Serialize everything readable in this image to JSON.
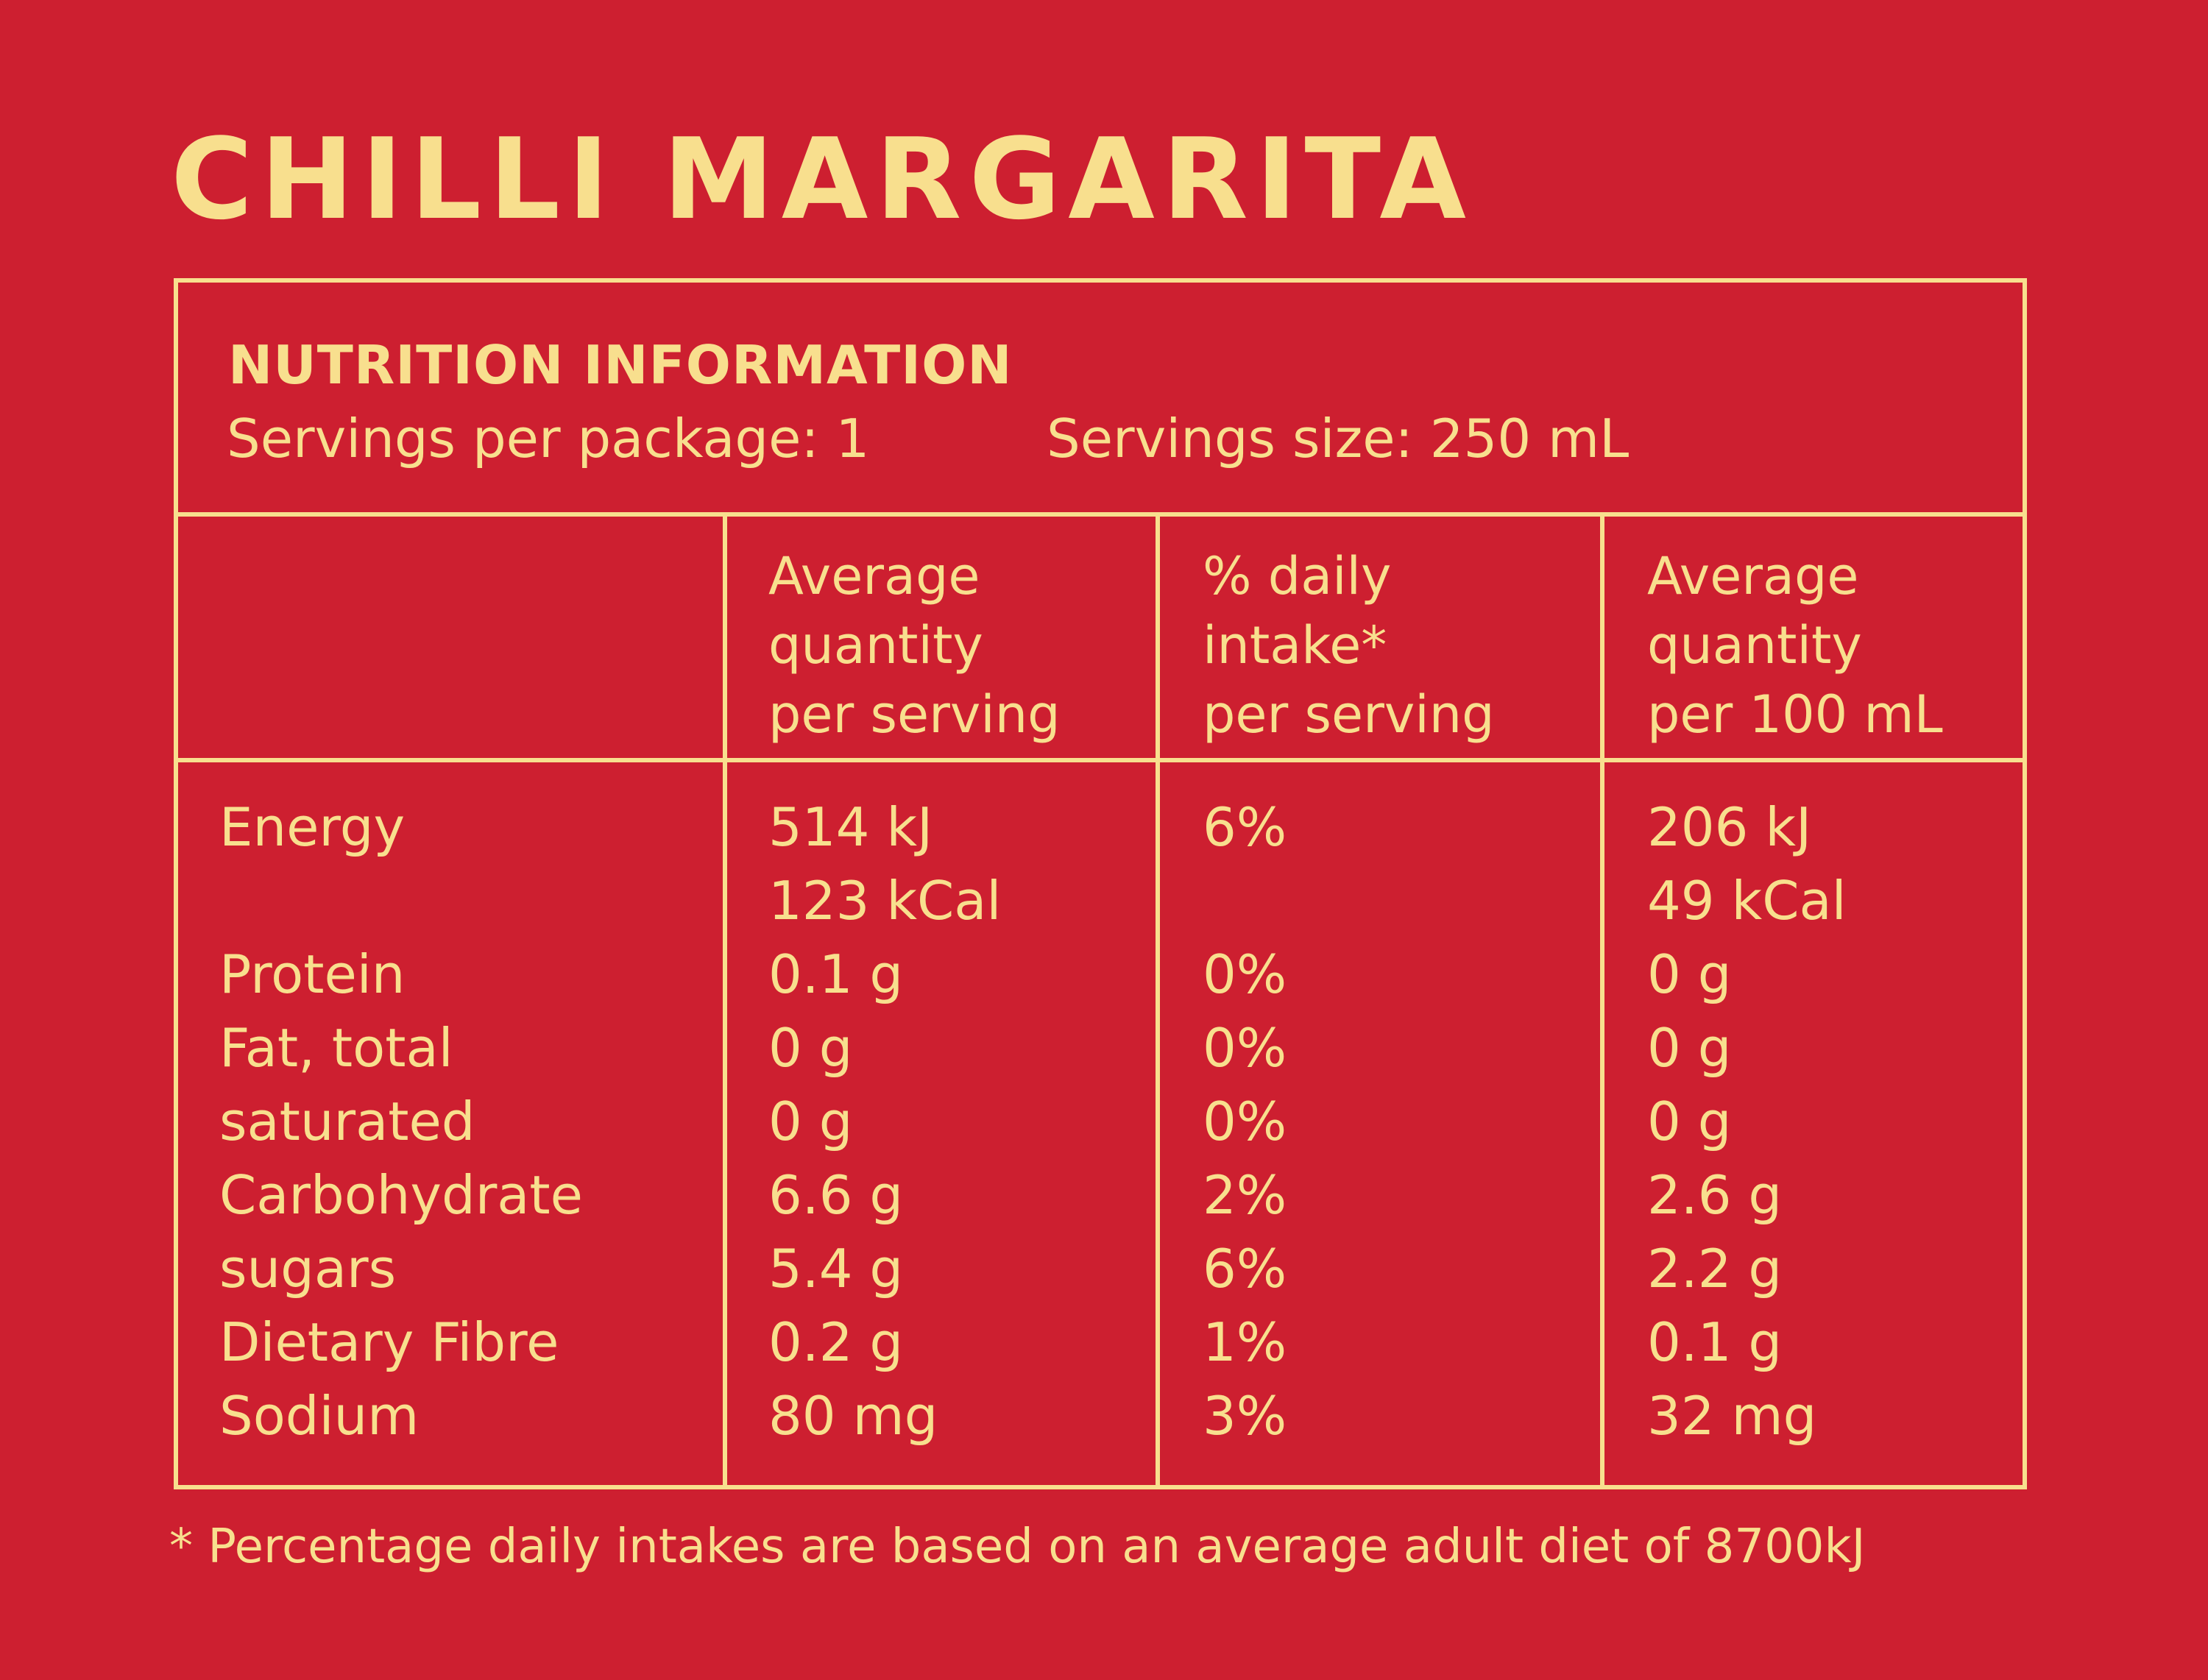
{
  "title": "CHILLI MARGARITA",
  "header": {
    "title": "NUTRITION INFORMATION",
    "servings_per_package": "Servings per package: 1",
    "servings_size": "Servings size: 250 mL"
  },
  "columns": [
    {
      "lines": [
        "Average",
        "quantity",
        "per serving"
      ]
    },
    {
      "lines": [
        "% daily",
        "intake*",
        "per serving"
      ]
    },
    {
      "lines": [
        "Average",
        "quantity",
        "per 100 mL"
      ]
    }
  ],
  "rows": [
    {
      "nutrient": "Energy",
      "per_serving": "514 kJ",
      "daily_intake": "6%",
      "per_100ml": "206 kJ"
    },
    {
      "nutrient": "",
      "per_serving": "123 kCal",
      "daily_intake": "",
      "per_100ml": "49 kCal"
    },
    {
      "nutrient": "Protein",
      "per_serving": "0.1 g",
      "daily_intake": "0%",
      "per_100ml": "0 g"
    },
    {
      "nutrient": "Fat, total",
      "per_serving": "0 g",
      "daily_intake": "0%",
      "per_100ml": "0 g"
    },
    {
      "nutrient": "saturated",
      "per_serving": "0 g",
      "daily_intake": "0%",
      "per_100ml": "0 g"
    },
    {
      "nutrient": "Carbohydrate",
      "per_serving": "6.6 g",
      "daily_intake": "2%",
      "per_100ml": "2.6 g"
    },
    {
      "nutrient": "sugars",
      "per_serving": "5.4 g",
      "daily_intake": "6%",
      "per_100ml": "2.2 g"
    },
    {
      "nutrient": "Dietary Fibre",
      "per_serving": "0.2 g",
      "daily_intake": "1%",
      "per_100ml": "0.1 g"
    },
    {
      "nutrient": "Sodium",
      "per_serving": "80 mg",
      "daily_intake": "3%",
      "per_100ml": "32 mg"
    }
  ],
  "footnote": "* Percentage daily intakes are based on an average adult diet of 8700kJ",
  "colors": {
    "background": "#cd1f30",
    "text": "#f8df8e"
  }
}
